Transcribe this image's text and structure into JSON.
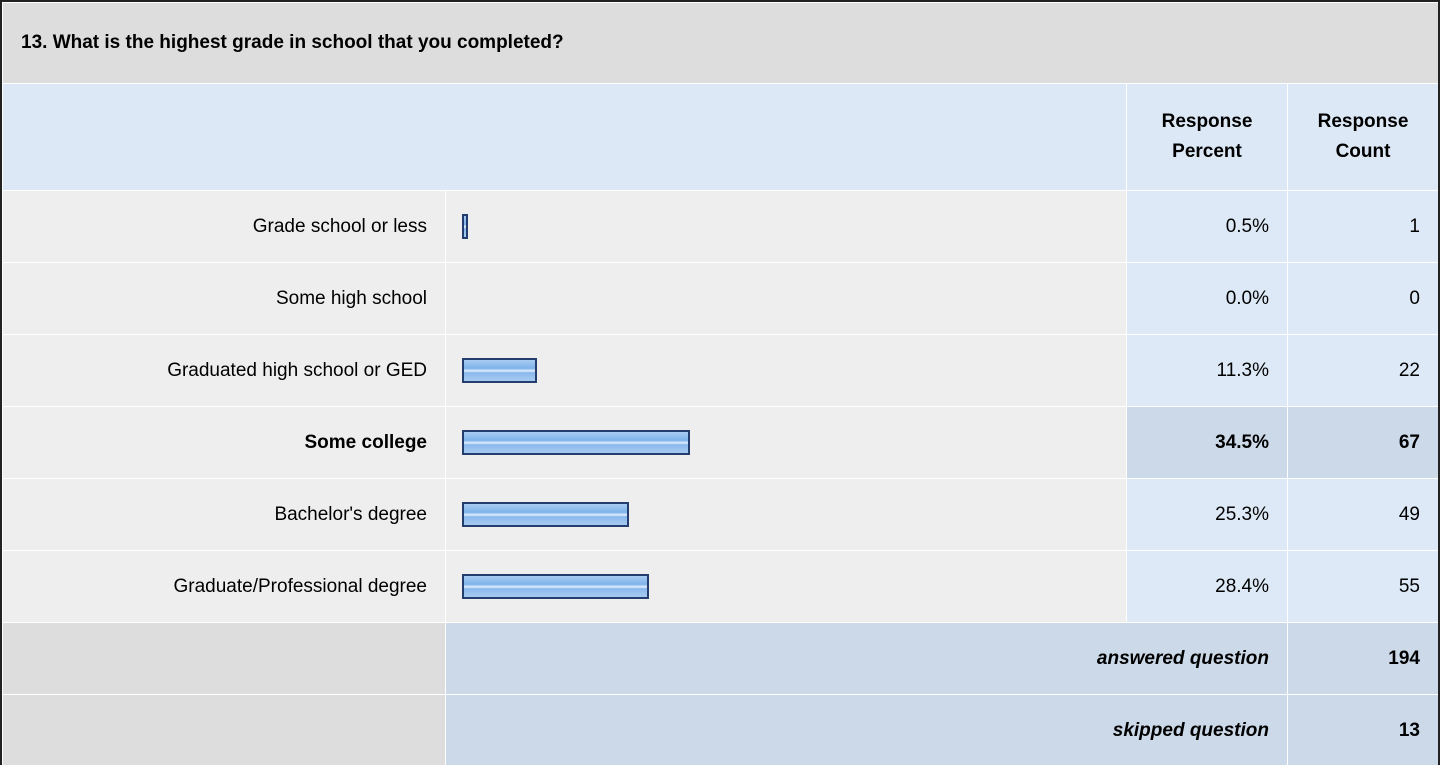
{
  "title": "13. What is the highest grade in school that you completed?",
  "table": {
    "headers": [
      "Response Percent",
      "Response Count"
    ],
    "rows": [
      {
        "label": "Grade school or less",
        "percent": 0.5,
        "percent_label": "0.5%",
        "count": 1
      },
      {
        "label": "Some high school",
        "percent": 0.0,
        "percent_label": "0.0%",
        "count": 0
      },
      {
        "label": "Graduated high school or GED",
        "percent": 11.3,
        "percent_label": "11.3%",
        "count": 22
      },
      {
        "label": "Some college",
        "percent": 34.5,
        "percent_label": "34.5%",
        "count": 67
      },
      {
        "label": "Bachelor's degree",
        "percent": 25.3,
        "percent_label": "25.3%",
        "count": 49
      },
      {
        "label": "Graduate/Professional degree",
        "percent": 28.4,
        "percent_label": "28.4%",
        "count": 55
      }
    ],
    "footer": [
      {
        "label": "answered question",
        "count": 194
      },
      {
        "label": "skipped question",
        "count": 13
      }
    ]
  }
}
